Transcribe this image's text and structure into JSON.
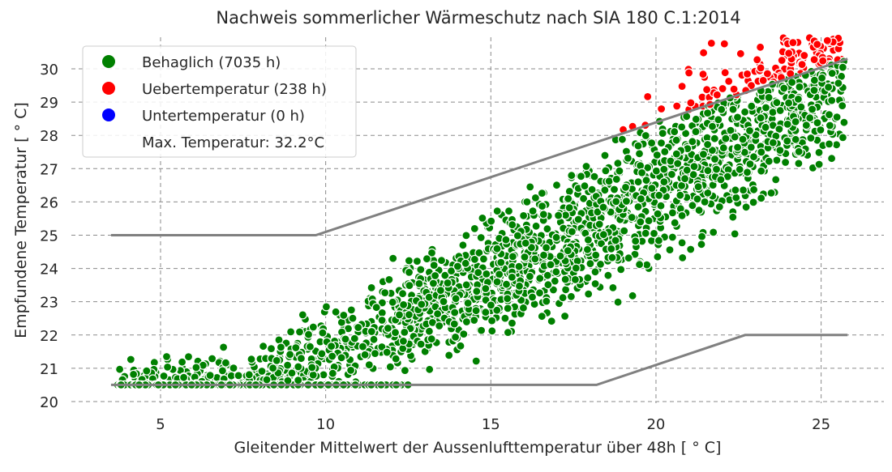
{
  "chart_data": {
    "type": "scatter",
    "title": "Nachweis sommerlicher Wärmeschutz nach SIA 180 C.1:2014",
    "xlabel": "Gleitender Mittelwert der Aussenlufttemperatur über 48h  [$^\\circ$C]",
    "xlabel_display": "Gleitender Mittelwert der Aussenlufttemperatur über 48h  [ ° C]",
    "ylabel_display": "Empfundene Temperatur  [ ° C]",
    "xlim": [
      2.3,
      26.9
    ],
    "ylim": [
      19.95,
      30.95
    ],
    "x_ticks": [
      5,
      10,
      15,
      20,
      25
    ],
    "y_ticks": [
      20,
      21,
      22,
      23,
      24,
      25,
      26,
      27,
      28,
      29,
      30
    ],
    "grid": true,
    "legend_position": "top-left",
    "legend": [
      {
        "label": "Behaglich (7035 h)",
        "color": "#008000"
      },
      {
        "label": "Uebertemperatur (238 h)",
        "color": "#ff0000"
      },
      {
        "label": "Untertemperatur (0 h)",
        "color": "#0000ff"
      },
      {
        "label": "Max. Temperatur: 32.2°C",
        "color": ""
      }
    ],
    "upper_limit": {
      "x": [
        3.5,
        9.7,
        25.8
      ],
      "y": [
        25.0,
        25.0,
        30.3
      ],
      "color": "#808080"
    },
    "lower_limit": {
      "x": [
        3.5,
        18.2,
        22.7,
        25.8
      ],
      "y": [
        20.5,
        20.5,
        22.0,
        22.0
      ],
      "color": "#808080"
    },
    "series": [
      {
        "name": "Behaglich (7035 h)",
        "color": "#008000",
        "count": 7035
      },
      {
        "name": "Uebertemperatur (238 h)",
        "color": "#ff0000",
        "count": 238
      },
      {
        "name": "Untertemperatur (0 h)",
        "color": "#0000ff",
        "count": 0
      }
    ]
  }
}
